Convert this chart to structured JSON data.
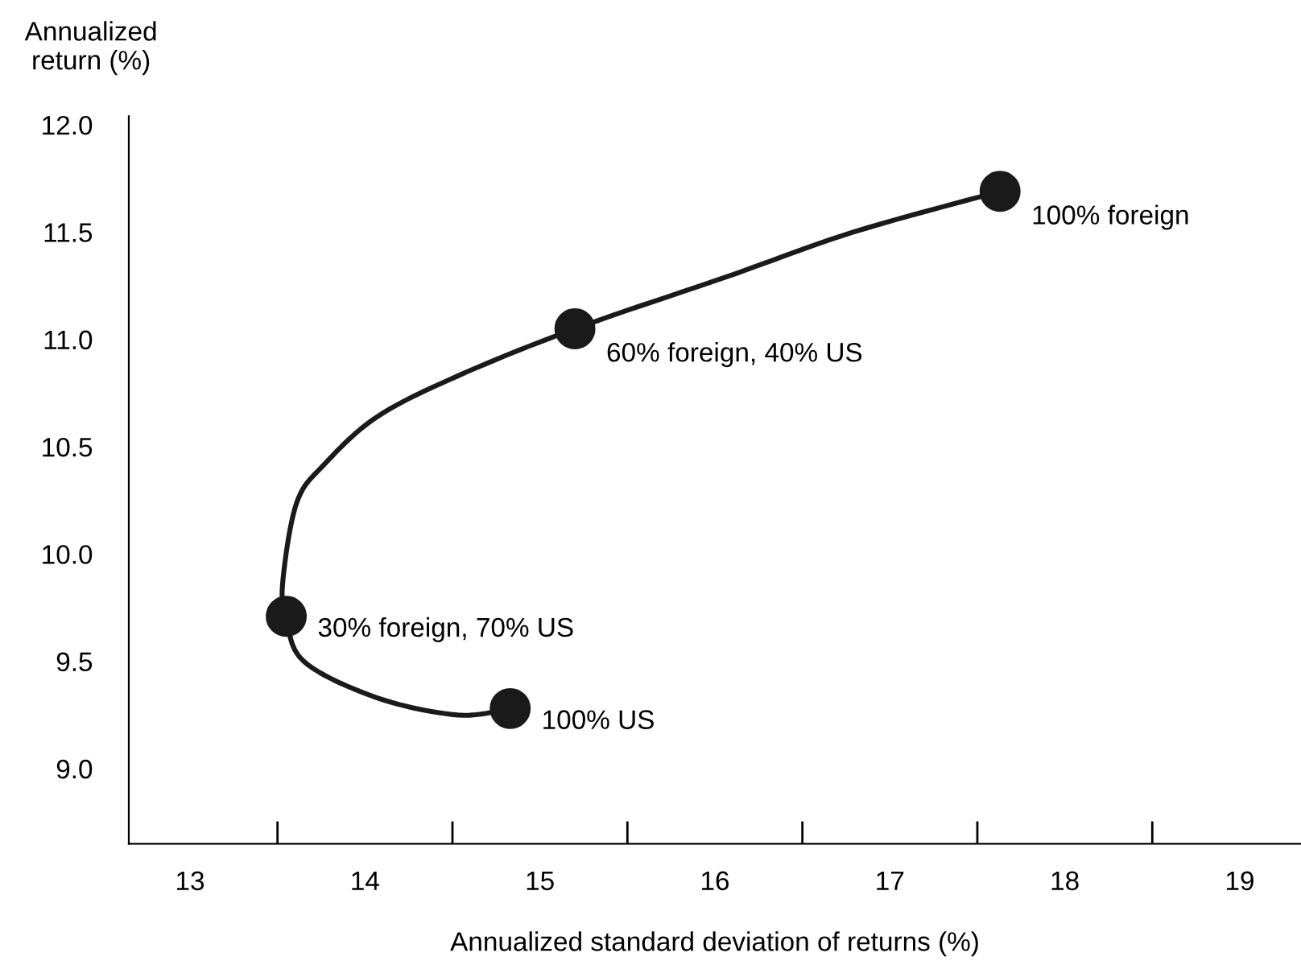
{
  "chart_data": {
    "type": "scatter",
    "xlabel": "Annualized standard deviation of returns (%)",
    "ylabel": "Annualized return (%)",
    "xlim": [
      12.65,
      19.35
    ],
    "ylim": [
      8.65,
      12.04
    ],
    "xticks": [
      13,
      14,
      15,
      16,
      17,
      18,
      19,
      {
        "value": 13.5,
        "label": null
      },
      {
        "value": 14.5,
        "label": null
      },
      {
        "value": 15.5,
        "label": null
      },
      {
        "value": 16.5,
        "label": null
      },
      {
        "value": 17.5,
        "label": null
      },
      {
        "value": 18.5,
        "label": null
      }
    ],
    "yticks": [
      {
        "value": 9.0,
        "label": "9.0"
      },
      9.5,
      {
        "value": 10.0,
        "label": "10.0"
      },
      10.5,
      {
        "value": 11.0,
        "label": "11.0"
      },
      11.5,
      {
        "value": 12.0,
        "label": "12.0"
      }
    ],
    "grid": false,
    "legend": false,
    "series": [
      {
        "type": "line",
        "color": "#1a1a1a",
        "marker": "none",
        "x": [
          14.83,
          14.53,
          14.07,
          13.65,
          13.55,
          13.53,
          13.61,
          13.77,
          14.07,
          14.53,
          15.2,
          16.06,
          16.79,
          17.63
        ],
        "values": [
          9.28,
          9.25,
          9.33,
          9.5,
          9.71,
          9.87,
          10.24,
          10.42,
          10.64,
          10.83,
          11.05,
          11.29,
          11.5,
          11.69
        ]
      },
      {
        "color": "#1a1a1a",
        "marker": "circle",
        "x": [
          17.63,
          15.2,
          13.55,
          14.83
        ],
        "values": [
          11.69,
          11.05,
          9.71,
          9.28
        ]
      }
    ],
    "annotations": [
      {
        "text": "100% foreign",
        "x": 17.63,
        "y": 11.69
      },
      {
        "text": "60% foreign, 40% US",
        "x": 15.2,
        "y": 11.05
      },
      {
        "text": "30% foreign, 70% US",
        "x": 13.55,
        "y": 9.71
      },
      {
        "text": "100% US",
        "x": 14.83,
        "y": 9.28
      }
    ]
  }
}
